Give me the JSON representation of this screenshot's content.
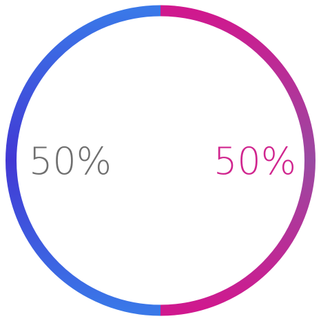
{
  "chart_data": {
    "type": "pie",
    "style": "ring",
    "categories": [
      "left",
      "right"
    ],
    "values": [
      50,
      50
    ],
    "labels": [
      "50%",
      "50%"
    ],
    "colors": {
      "left_top": "#3a78e8",
      "left_bottom": "#4238d4",
      "right_top": "#d0188e",
      "right_bottom": "#9a4aa2",
      "left_text": "#6f6f6f",
      "right_text": "#d0258e"
    }
  }
}
